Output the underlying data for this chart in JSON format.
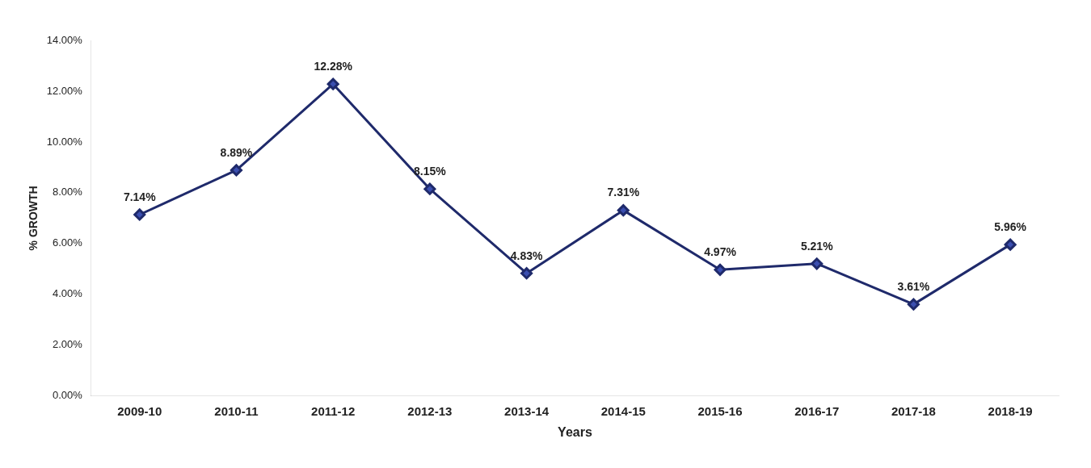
{
  "chart_data": {
    "type": "line",
    "xlabel": "Years",
    "ylabel": "% GROWTH",
    "categories": [
      "2009-10",
      "2010-11",
      "2011-12",
      "2012-13",
      "2013-14",
      "2014-15",
      "2015-16",
      "2016-17",
      "2017-18",
      "2018-19"
    ],
    "series": [
      {
        "color": "#1f2a6b",
        "values": [
          7.14,
          8.89,
          12.28,
          8.15,
          4.83,
          7.31,
          4.97,
          5.21,
          3.61,
          5.96
        ],
        "value_labels": [
          "7.14%",
          "8.89%",
          "12.28%",
          "8.15%",
          "4.83%",
          "7.31%",
          "4.97%",
          "5.21%",
          "3.61%",
          "5.96%"
        ]
      }
    ],
    "ylim": [
      0,
      14
    ],
    "yticks": [
      {
        "value": 0,
        "label": "0.00%"
      },
      {
        "value": 2,
        "label": "2.00%"
      },
      {
        "value": 4,
        "label": "4.00%"
      },
      {
        "value": 6,
        "label": "6.00%"
      },
      {
        "value": 8,
        "label": "8.00%"
      },
      {
        "value": 10,
        "label": "10.00%"
      },
      {
        "value": 12,
        "label": "12.00%"
      },
      {
        "value": 14,
        "label": "14.00%"
      }
    ],
    "grid": false,
    "legend": false,
    "marker": "diamond",
    "line_style": "solid"
  }
}
